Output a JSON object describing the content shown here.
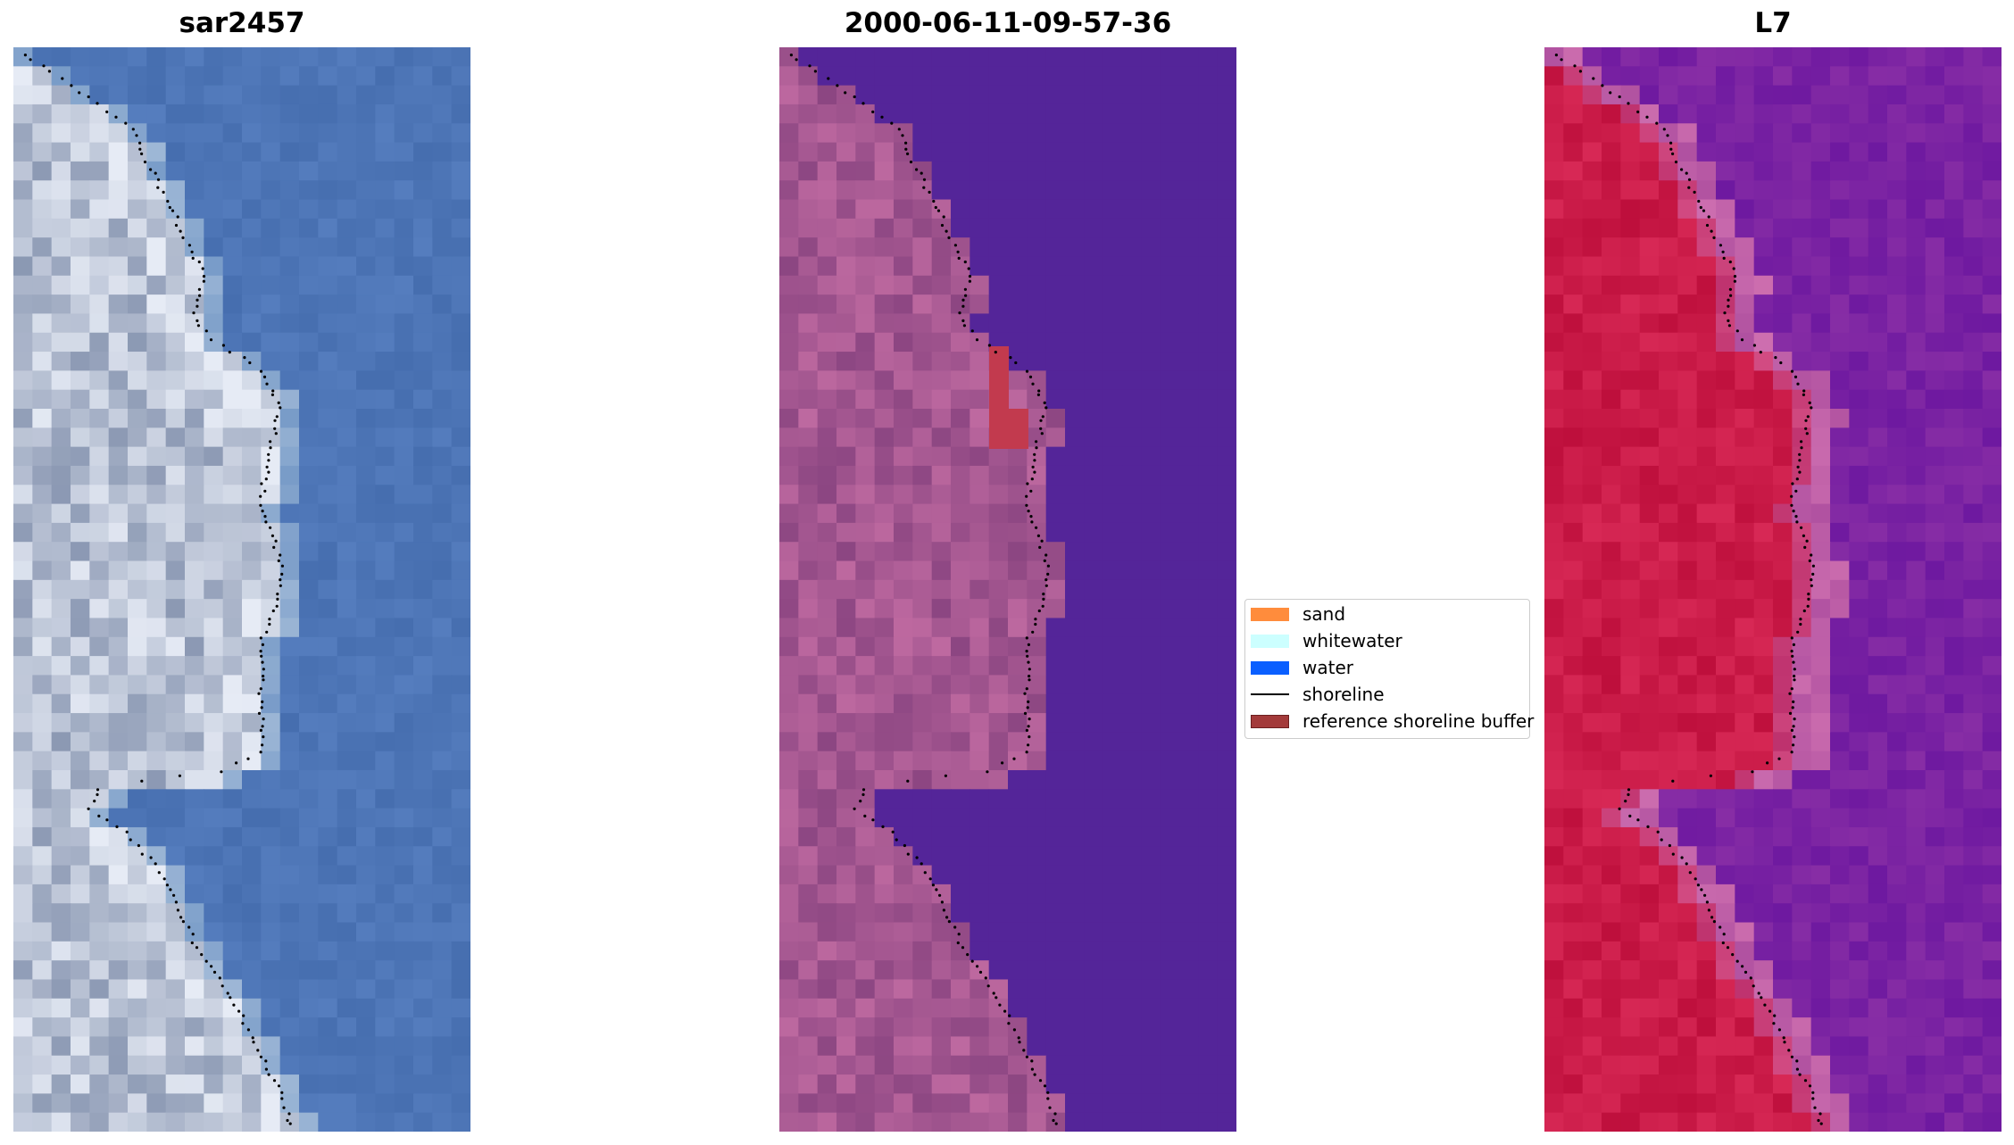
{
  "panels": [
    {
      "title": "sar2457",
      "palette": "rgb"
    },
    {
      "title": "2000-06-11-09-57-36",
      "palette": "classified"
    },
    {
      "title": "L7",
      "palette": "falsecolor"
    }
  ],
  "legend": {
    "items": [
      {
        "label": "sand",
        "color": "#ff8c3c",
        "kind": "patch"
      },
      {
        "label": "whitewater",
        "color": "#ccffff",
        "kind": "patch"
      },
      {
        "label": "water",
        "color": "#0a5fff",
        "kind": "patch"
      },
      {
        "label": "shoreline",
        "color": "#000000",
        "kind": "line"
      },
      {
        "label": "reference shoreline buffer",
        "color": "#a33a3a",
        "kind": "patch"
      }
    ]
  }
}
